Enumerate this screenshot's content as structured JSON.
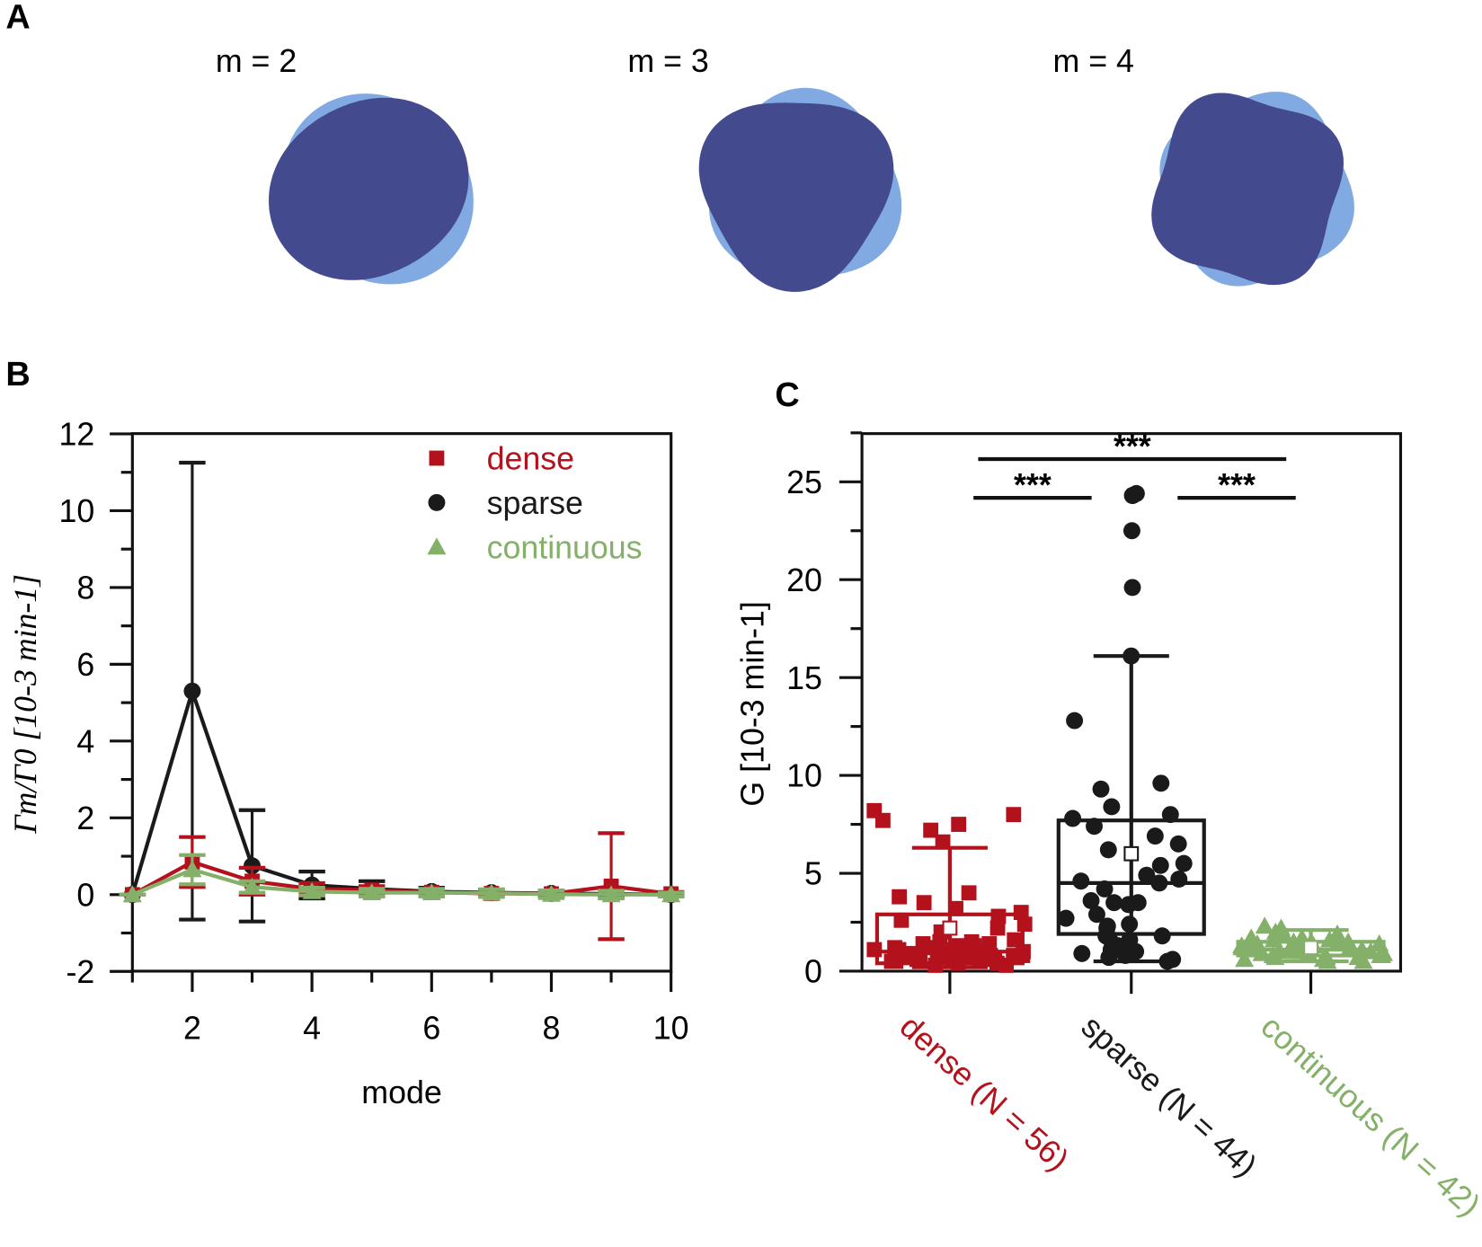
{
  "colors": {
    "dense": "#b3121c",
    "sparse": "#1a1a1a",
    "continuous": "#84b06a",
    "shape_light": "#82aae2",
    "shape_dark": "#444a8e"
  },
  "panel_labels": {
    "a": "A",
    "b": "B",
    "c": "C"
  },
  "chart_data": [
    {
      "type": "diagram",
      "panel": "A",
      "shapes": [
        {
          "label": "m = 2",
          "m": 2
        },
        {
          "label": "m = 3",
          "m": 3
        },
        {
          "label": "m = 4",
          "m": 4
        }
      ]
    },
    {
      "type": "line",
      "panel": "B",
      "xlabel": "mode",
      "ylabel": "Γm/Γ0 [10-3 min-1]",
      "xlim": [
        1,
        10
      ],
      "ylim": [
        -2,
        12
      ],
      "xticks": [
        2,
        4,
        6,
        8,
        10
      ],
      "yticks": [
        -2,
        0,
        2,
        4,
        6,
        8,
        10,
        12
      ],
      "legend": "top-right",
      "x": [
        1,
        2,
        3,
        4,
        5,
        6,
        7,
        8,
        9,
        10
      ],
      "series": [
        {
          "name": "dense",
          "marker": "square",
          "values": [
            0,
            0.85,
            0.35,
            0.15,
            0.12,
            0.06,
            0.03,
            0.02,
            0.22,
            0.02
          ],
          "err": [
            0,
            0.65,
            0.35,
            0.15,
            0.1,
            0.06,
            0.05,
            0.05,
            1.38,
            0.05
          ]
        },
        {
          "name": "sparse",
          "marker": "circle",
          "values": [
            0,
            5.3,
            0.75,
            0.25,
            0.15,
            0.08,
            0.05,
            0.03,
            0.02,
            0
          ],
          "err": [
            0,
            5.95,
            1.45,
            0.35,
            0.2,
            0.1,
            0.08,
            0.08,
            0.1,
            0.05
          ]
        },
        {
          "name": "continuous",
          "marker": "triangle",
          "values": [
            0,
            0.65,
            0.2,
            0.08,
            0.05,
            0.05,
            0.04,
            0.01,
            0,
            0
          ],
          "err": [
            0,
            0.38,
            0.15,
            0.1,
            0.1,
            0.1,
            0.1,
            0.1,
            0.1,
            0.05
          ]
        }
      ]
    },
    {
      "type": "box",
      "panel": "C",
      "ylabel": "G [10-3 min-1]",
      "ylim": [
        0,
        27.5
      ],
      "yticks": [
        0,
        5,
        10,
        15,
        20,
        25
      ],
      "significance": [
        {
          "from": "dense",
          "to": "sparse",
          "label": "***"
        },
        {
          "from": "sparse",
          "to": "continuous",
          "label": "***"
        },
        {
          "from": "dense",
          "to": "continuous",
          "label": "***"
        }
      ],
      "groups": [
        {
          "name": "dense",
          "label": "dense (N = 56)",
          "box": {
            "q1": 0.4,
            "median": 1.0,
            "q3": 2.9,
            "mean": 2.2,
            "whisker_low": 0.2,
            "whisker_high": 6.3
          },
          "points": [
            8.2,
            8.0,
            7.7,
            7.5,
            7.2,
            6.6,
            4.0,
            3.8,
            3.5,
            3.2,
            3.0,
            2.8,
            2.6,
            2.4,
            2.2,
            2.0,
            1.6,
            1.5,
            1.5,
            1.4,
            1.4,
            1.3,
            1.3,
            1.2,
            1.2,
            1.2,
            1.1,
            1.1,
            1.1,
            1.0,
            1.0,
            1.0,
            0.9,
            0.9,
            0.9,
            0.9,
            0.8,
            0.8,
            0.8,
            0.8,
            0.7,
            0.7,
            0.7,
            0.7,
            0.6,
            0.6,
            0.6,
            0.6,
            0.5,
            0.5,
            0.5,
            0.5,
            0.4,
            0.4,
            0.3,
            0.3
          ]
        },
        {
          "name": "sparse",
          "label": "sparse (N = 44)",
          "box": {
            "q1": 1.9,
            "median": 4.5,
            "q3": 7.7,
            "mean": 6.0,
            "whisker_low": 0.5,
            "whisker_high": 16.1
          },
          "points": [
            24.3,
            24.3,
            24.4,
            22.5,
            19.6,
            16.1,
            12.8,
            9.6,
            9.3,
            8.4,
            8.0,
            7.8,
            7.4,
            6.9,
            6.5,
            6.2,
            5.5,
            5.4,
            4.9,
            4.7,
            4.6,
            4.5,
            4.2,
            3.6,
            3.5,
            3.5,
            3.4,
            2.9,
            2.7,
            2.4,
            2.3,
            2.2,
            1.8,
            1.8,
            1.7,
            1.6,
            1.3,
            1.1,
            1.0,
            0.9,
            0.8,
            0.7,
            0.6,
            0.5
          ]
        },
        {
          "name": "continuous",
          "label": "continuous (N = 42)",
          "box": {
            "q1": 0.8,
            "median": 1.1,
            "q3": 1.5,
            "mean": 1.2,
            "whisker_low": 0.5,
            "whisker_high": 2.1
          },
          "points": [
            2.3,
            2.2,
            2.0,
            1.9,
            1.8,
            1.7,
            1.7,
            1.6,
            1.6,
            1.5,
            1.5,
            1.5,
            1.4,
            1.4,
            1.4,
            1.3,
            1.3,
            1.3,
            1.2,
            1.2,
            1.2,
            1.1,
            1.1,
            1.1,
            1.0,
            1.0,
            1.0,
            1.0,
            0.9,
            0.9,
            0.9,
            0.9,
            0.8,
            0.8,
            0.8,
            0.7,
            0.7,
            0.7,
            0.6,
            0.6,
            0.5,
            0.5
          ]
        }
      ]
    }
  ]
}
